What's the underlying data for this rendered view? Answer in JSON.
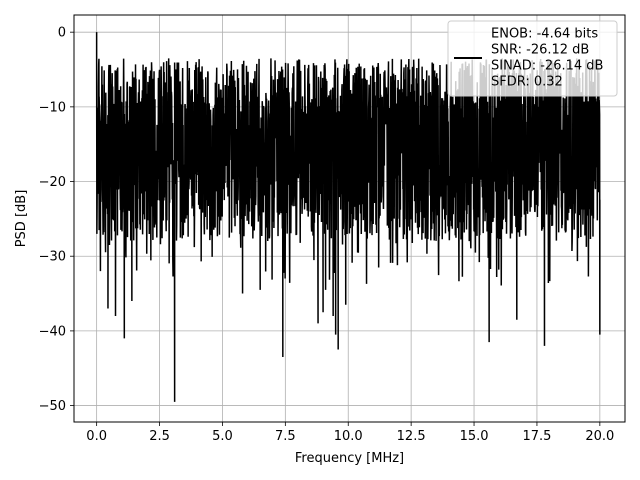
{
  "chart_data": {
    "type": "line",
    "xlabel": "Frequency [MHz]",
    "ylabel": "PSD [dB]",
    "xlim": [
      -0.9,
      21.0
    ],
    "ylim": [
      -52.2,
      2.3
    ],
    "xticks": [
      0.0,
      2.5,
      5.0,
      7.5,
      10.0,
      12.5,
      15.0,
      17.5,
      20.0
    ],
    "xtick_labels": [
      "0.0",
      "2.5",
      "5.0",
      "7.5",
      "10.0",
      "12.5",
      "15.0",
      "17.5",
      "20.0"
    ],
    "yticks": [
      0,
      -10,
      -20,
      -30,
      -40,
      -50
    ],
    "ytick_labels": [
      "0",
      "−10",
      "−20",
      "−30",
      "−40",
      "−50"
    ],
    "grid": true,
    "legend_placement": "top-right",
    "legend_lines": [
      "ENOB: -4.64 bits",
      "SNR: -26.12 dB",
      "SINAD: -26.14 dB",
      "SFDR: 0.32"
    ],
    "series": [
      {
        "color": "#000000",
        "x_range": [
          0.0,
          20.0
        ],
        "characteristic": "dense noise floor, mostly between -30 and -5 dB",
        "points": [
          {
            "x": 0.0,
            "y": 0.0
          },
          {
            "x": 0.03,
            "y": -10.5
          },
          {
            "x": 0.1,
            "y": -26.5
          },
          {
            "x": 0.15,
            "y": -32.0
          },
          {
            "x": 0.45,
            "y": -37.0
          },
          {
            "x": 0.75,
            "y": -38.0
          },
          {
            "x": 1.1,
            "y": -41.0
          },
          {
            "x": 1.4,
            "y": -36.0
          },
          {
            "x": 3.1,
            "y": -49.5
          },
          {
            "x": 5.8,
            "y": -35.0
          },
          {
            "x": 6.5,
            "y": -34.5
          },
          {
            "x": 7.4,
            "y": -43.5
          },
          {
            "x": 8.8,
            "y": -39.0
          },
          {
            "x": 9.0,
            "y": -37.5
          },
          {
            "x": 9.1,
            "y": -34.5
          },
          {
            "x": 9.4,
            "y": -38.0
          },
          {
            "x": 9.5,
            "y": -40.5
          },
          {
            "x": 9.6,
            "y": -42.5
          },
          {
            "x": 9.9,
            "y": -36.5
          },
          {
            "x": 15.6,
            "y": -41.5
          },
          {
            "x": 16.7,
            "y": -38.5
          },
          {
            "x": 17.8,
            "y": -42.0
          },
          {
            "x": 20.0,
            "y": -40.5
          }
        ]
      }
    ]
  }
}
